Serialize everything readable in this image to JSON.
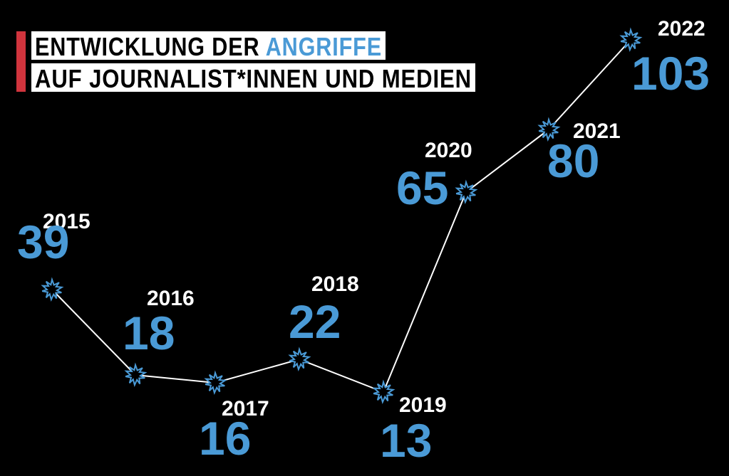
{
  "title": {
    "line1_prefix": "ENTWICKLUNG DER ",
    "line1_highlight": "ANGRIFFE",
    "line2": "AUF JOURNALIST*INNEN UND MEDIEN"
  },
  "colors": {
    "background": "#000000",
    "accent_bar": "#d0343d",
    "value_blue": "#4a9ad6",
    "line": "#ffffff",
    "title_box": "#ffffff",
    "title_text": "#000000"
  },
  "chart_data": {
    "type": "line",
    "x": [
      "2015",
      "2016",
      "2017",
      "2018",
      "2019",
      "2020",
      "2021",
      "2022"
    ],
    "values": [
      39,
      18,
      16,
      22,
      13,
      65,
      80,
      103
    ],
    "data_labels": [
      "39",
      "18",
      "16",
      "22",
      "13",
      "65",
      "80",
      "103"
    ],
    "marker": "explosion-star",
    "axes_visible": false,
    "grid": false,
    "legend": "none"
  }
}
